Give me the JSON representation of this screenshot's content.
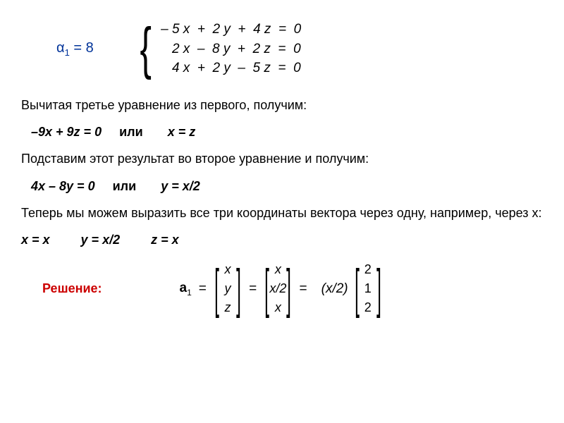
{
  "alpha": {
    "symbol": "α",
    "sub": "1",
    "eq": " = 8"
  },
  "system": {
    "row1": "– 5 x  +  2 y  +  4 z  =  0",
    "row2": "   2 x  –  8 y  +  2 z  =  0",
    "row3": "   4 x  +  2 y  –  5 z  =  0"
  },
  "p1": "Вычитая третье уравнение из первого, получим:",
  "d1a": "–9x + 9z = 0",
  "d1_or": "или",
  "d1b": "x = z",
  "p2": "Подставим этот результат во второе уравнение и получим:",
  "d2a": "4x – 8y = 0",
  "d2b": "y = x/2",
  "p3": "Теперь мы можем выразить все три координаты вектора через одну, например, через x:",
  "xeq": {
    "a": "x = x",
    "b": "y = x/2",
    "c": "z = x"
  },
  "solution_label": "Решение:",
  "a1": {
    "sym": "a",
    "sub": "1"
  },
  "vec1": [
    "x",
    "y",
    "z"
  ],
  "vec2": [
    "x",
    "x/2",
    "x"
  ],
  "scalar": "(x/2)",
  "vec3": [
    "2",
    "1",
    "2"
  ],
  "colors": {
    "alpha": "#003399",
    "solution": "#cc0000",
    "text": "#000000",
    "bg": "#ffffff"
  }
}
